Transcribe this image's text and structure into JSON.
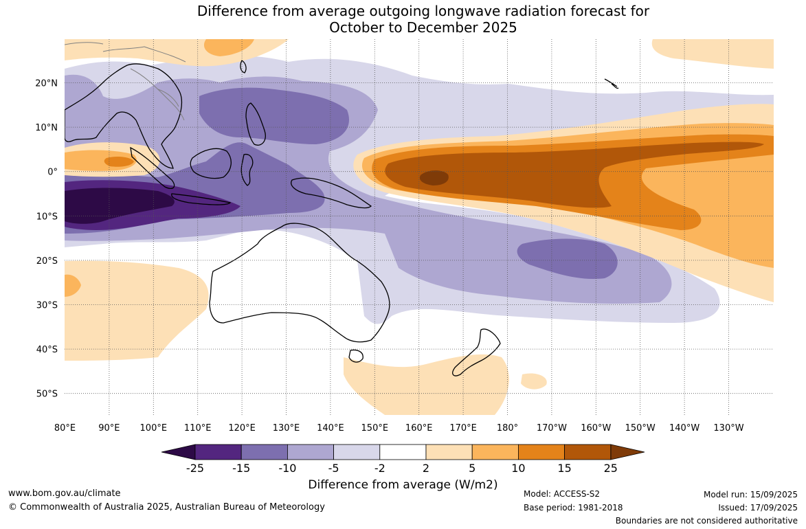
{
  "title": {
    "line1": "Difference from average outgoing longwave radiation forecast for",
    "line2": "October to December 2025"
  },
  "map": {
    "lat_labels": [
      "20°N",
      "10°N",
      "0°",
      "10°S",
      "20°S",
      "30°S",
      "40°S",
      "50°S"
    ],
    "lon_labels": [
      "80°E",
      "90°E",
      "100°E",
      "110°E",
      "120°E",
      "130°E",
      "140°E",
      "150°E",
      "160°E",
      "170°E",
      "180°",
      "170°W",
      "160°W",
      "150°W",
      "140°W",
      "130°W"
    ],
    "colors": {
      "le_-25": "#2d0a46",
      "-25_-15": "#53267f",
      "-15_-10": "#7d6faf",
      "-10_-5": "#aea7d1",
      "-5_-2": "#d8d7ea",
      "-2_2": "#ffffff",
      "2_5": "#fde0b6",
      "5_10": "#fbb55c",
      "10_15": "#e4831a",
      "15_25": "#b15709",
      "ge_25": "#7f3b08"
    }
  },
  "colorbar": {
    "ticks": [
      "-25",
      "-15",
      "-10",
      "-5",
      "-2",
      "2",
      "5",
      "10",
      "15",
      "25"
    ],
    "label": "Difference from average (W/m2)"
  },
  "footer": {
    "website": "www.bom.gov.au/climate",
    "copyright": "© Commonwealth of Australia 2025, Australian Bureau of Meteorology",
    "model": "Model: ACCESS-S2",
    "base_period": "Base period: 1981-2018",
    "model_run": "Model run: 15/09/2025",
    "issued": "Issued: 17/09/2025",
    "disclaimer": "Boundaries are not considered authoritative"
  }
}
